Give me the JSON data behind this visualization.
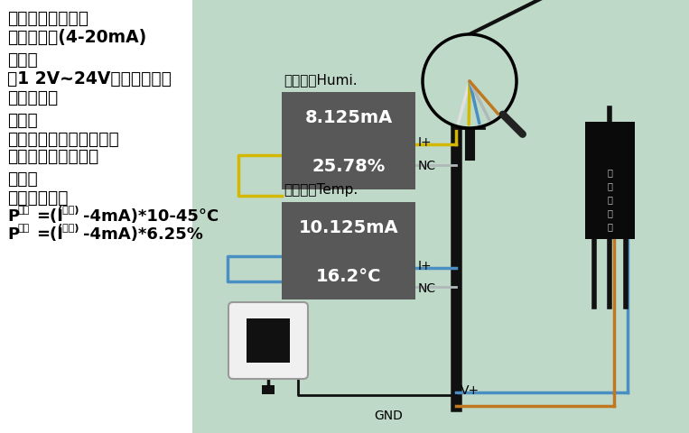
{
  "bg_color": "#bfd9c8",
  "left_bg": "#ffffff",
  "title_lines": [
    "土壤溫湿度传感器",
    "电流输出制(4-20mA)",
    "第一步",
    "用1 2V~24V的电源适配器",
    "连接传感器",
    "第二步",
    "正确挑选万用表量程或连",
    "接模拟量信号采集器",
    "第三步",
    "对照公式计算"
  ],
  "humi_label": "湿度采集Humi.",
  "humi_val1": "8.125mA",
  "humi_val2": "25.78%",
  "temp_label": "温度采集Temp.",
  "temp_val1": "10.125mA",
  "temp_val2": "16.2°C",
  "iplus_label": "I+",
  "nc_label": "NC",
  "vplus_label": "V+",
  "gnd_label": "GND",
  "wire_yellow": "#d4b800",
  "wire_blue": "#4a8fc4",
  "wire_gray": "#b0b8b8",
  "wire_brown": "#c07820",
  "wire_black": "#101010",
  "wire_white": "#e0e0e0"
}
